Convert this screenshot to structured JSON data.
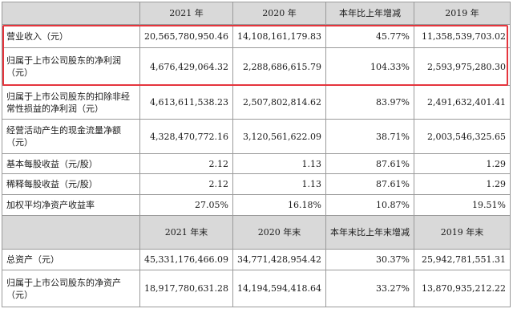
{
  "header1": [
    "",
    "2021 年",
    "2020 年",
    "本年比上年增减",
    "2019 年"
  ],
  "rows1": [
    {
      "label": "营业收入（元）",
      "v2021": "20,565,780,950.46",
      "v2020": "14,108,161,179.83",
      "change": "45.77%",
      "v2019": "11,358,539,703.02"
    },
    {
      "label": "归属于上市公司股东的净利润（元）",
      "v2021": "4,676,429,064.32",
      "v2020": "2,288,686,615.79",
      "change": "104.33%",
      "v2019": "2,593,975,280.30"
    },
    {
      "label": "归属于上市公司股东的扣除非经常性损益的净利润（元）",
      "v2021": "4,613,611,538.23",
      "v2020": "2,507,802,814.62",
      "change": "83.97%",
      "v2019": "2,491,632,401.41"
    },
    {
      "label": "经营活动产生的现金流量净额（元）",
      "v2021": "4,328,470,772.16",
      "v2020": "3,120,561,622.09",
      "change": "38.71%",
      "v2019": "2,003,546,325.65"
    },
    {
      "label": "基本每股收益（元/股）",
      "v2021": "2.12",
      "v2020": "1.13",
      "change": "87.61%",
      "v2019": "1.29"
    },
    {
      "label": "稀释每股收益（元/股）",
      "v2021": "2.12",
      "v2020": "1.13",
      "change": "87.61%",
      "v2019": "1.29"
    },
    {
      "label": "加权平均净资产收益率",
      "v2021": "27.05%",
      "v2020": "16.18%",
      "change": "10.87%",
      "v2019": "19.51%"
    }
  ],
  "header2": [
    "",
    "2021 年末",
    "2020 年末",
    "本年末比上年末增减",
    "2019 年末"
  ],
  "rows2": [
    {
      "label": "总资产（元）",
      "v2021": "45,331,176,466.09",
      "v2020": "34,771,428,954.42",
      "change": "30.37%",
      "v2019": "25,942,781,551.31"
    },
    {
      "label": "归属于上市公司股东的净资产（元）",
      "v2021": "18,917,780,631.28",
      "v2020": "14,194,594,418.64",
      "change": "33.27%",
      "v2019": "13,870,935,212.22"
    }
  ],
  "highlight_color": "#e5353d"
}
